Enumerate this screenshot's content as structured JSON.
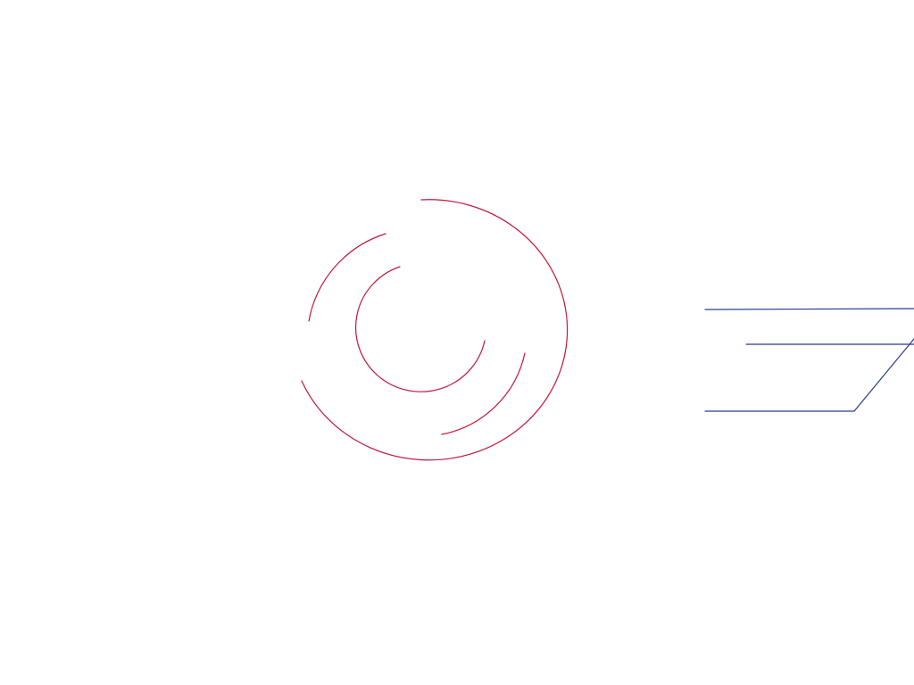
{
  "colors": {
    "background": "#ffffff",
    "arc_stroke": "#c0183a",
    "line_stroke": "#2a3b8f"
  },
  "graphics": {
    "concentric_arcs": {
      "semantic": "loading-spinner-icon",
      "rings": 3
    },
    "angled_lines": {
      "semantic": "partial-logo-lines",
      "line_count": 3
    }
  }
}
